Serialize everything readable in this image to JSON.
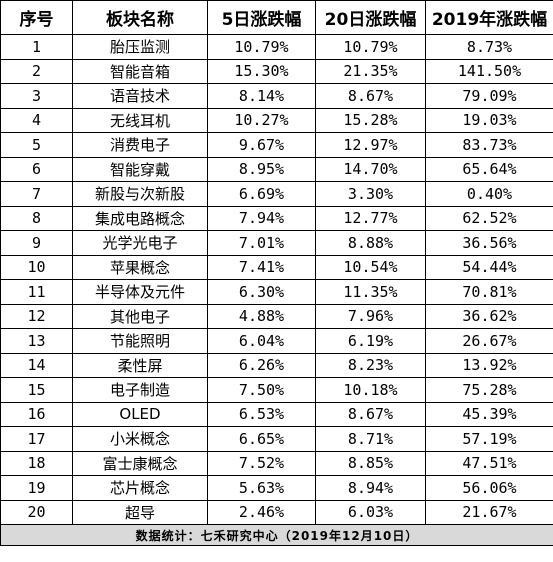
{
  "headers": [
    "序号",
    "板块名称",
    "5日涨跌幅",
    "20日涨跌幅",
    "2019年涨跌幅"
  ],
  "rows": [
    [
      "1",
      "胎压监测",
      "10.79%",
      "10.79%",
      "8.73%"
    ],
    [
      "2",
      "智能音箱",
      "15.30%",
      "21.35%",
      "141.50%"
    ],
    [
      "3",
      "语音技术",
      "8.14%",
      "8.67%",
      "79.09%"
    ],
    [
      "4",
      "无线耳机",
      "10.27%",
      "15.28%",
      "19.03%"
    ],
    [
      "5",
      "消费电子",
      "9.67%",
      "12.97%",
      "83.73%"
    ],
    [
      "6",
      "智能穿戴",
      "8.95%",
      "14.70%",
      "65.64%"
    ],
    [
      "7",
      "新股与次新股",
      "6.69%",
      "3.30%",
      "0.40%"
    ],
    [
      "8",
      "集成电路概念",
      "7.94%",
      "12.77%",
      "62.52%"
    ],
    [
      "9",
      "光学光电子",
      "7.01%",
      "8.88%",
      "36.56%"
    ],
    [
      "10",
      "苹果概念",
      "7.41%",
      "10.54%",
      "54.44%"
    ],
    [
      "11",
      "半导体及元件",
      "6.30%",
      "11.35%",
      "70.81%"
    ],
    [
      "12",
      "其他电子",
      "4.88%",
      "7.96%",
      "36.62%"
    ],
    [
      "13",
      "节能照明",
      "6.04%",
      "6.19%",
      "26.67%"
    ],
    [
      "14",
      "柔性屏",
      "6.26%",
      "8.23%",
      "13.92%"
    ],
    [
      "15",
      "电子制造",
      "7.50%",
      "10.18%",
      "75.28%"
    ],
    [
      "16",
      "OLED",
      "6.53%",
      "8.67%",
      "45.39%"
    ],
    [
      "17",
      "小米概念",
      "6.65%",
      "8.71%",
      "57.19%"
    ],
    [
      "18",
      "富士康概念",
      "7.52%",
      "8.85%",
      "47.51%"
    ],
    [
      "19",
      "芯片概念",
      "5.63%",
      "8.94%",
      "56.06%"
    ],
    [
      "20",
      "超导",
      "2.46%",
      "6.03%",
      "21.67%"
    ]
  ],
  "footer": "数据统计：七禾研究中心（2019年12月10日）",
  "colors": {
    "footer_bg": "#d9d9d9",
    "border": "#000000"
  }
}
